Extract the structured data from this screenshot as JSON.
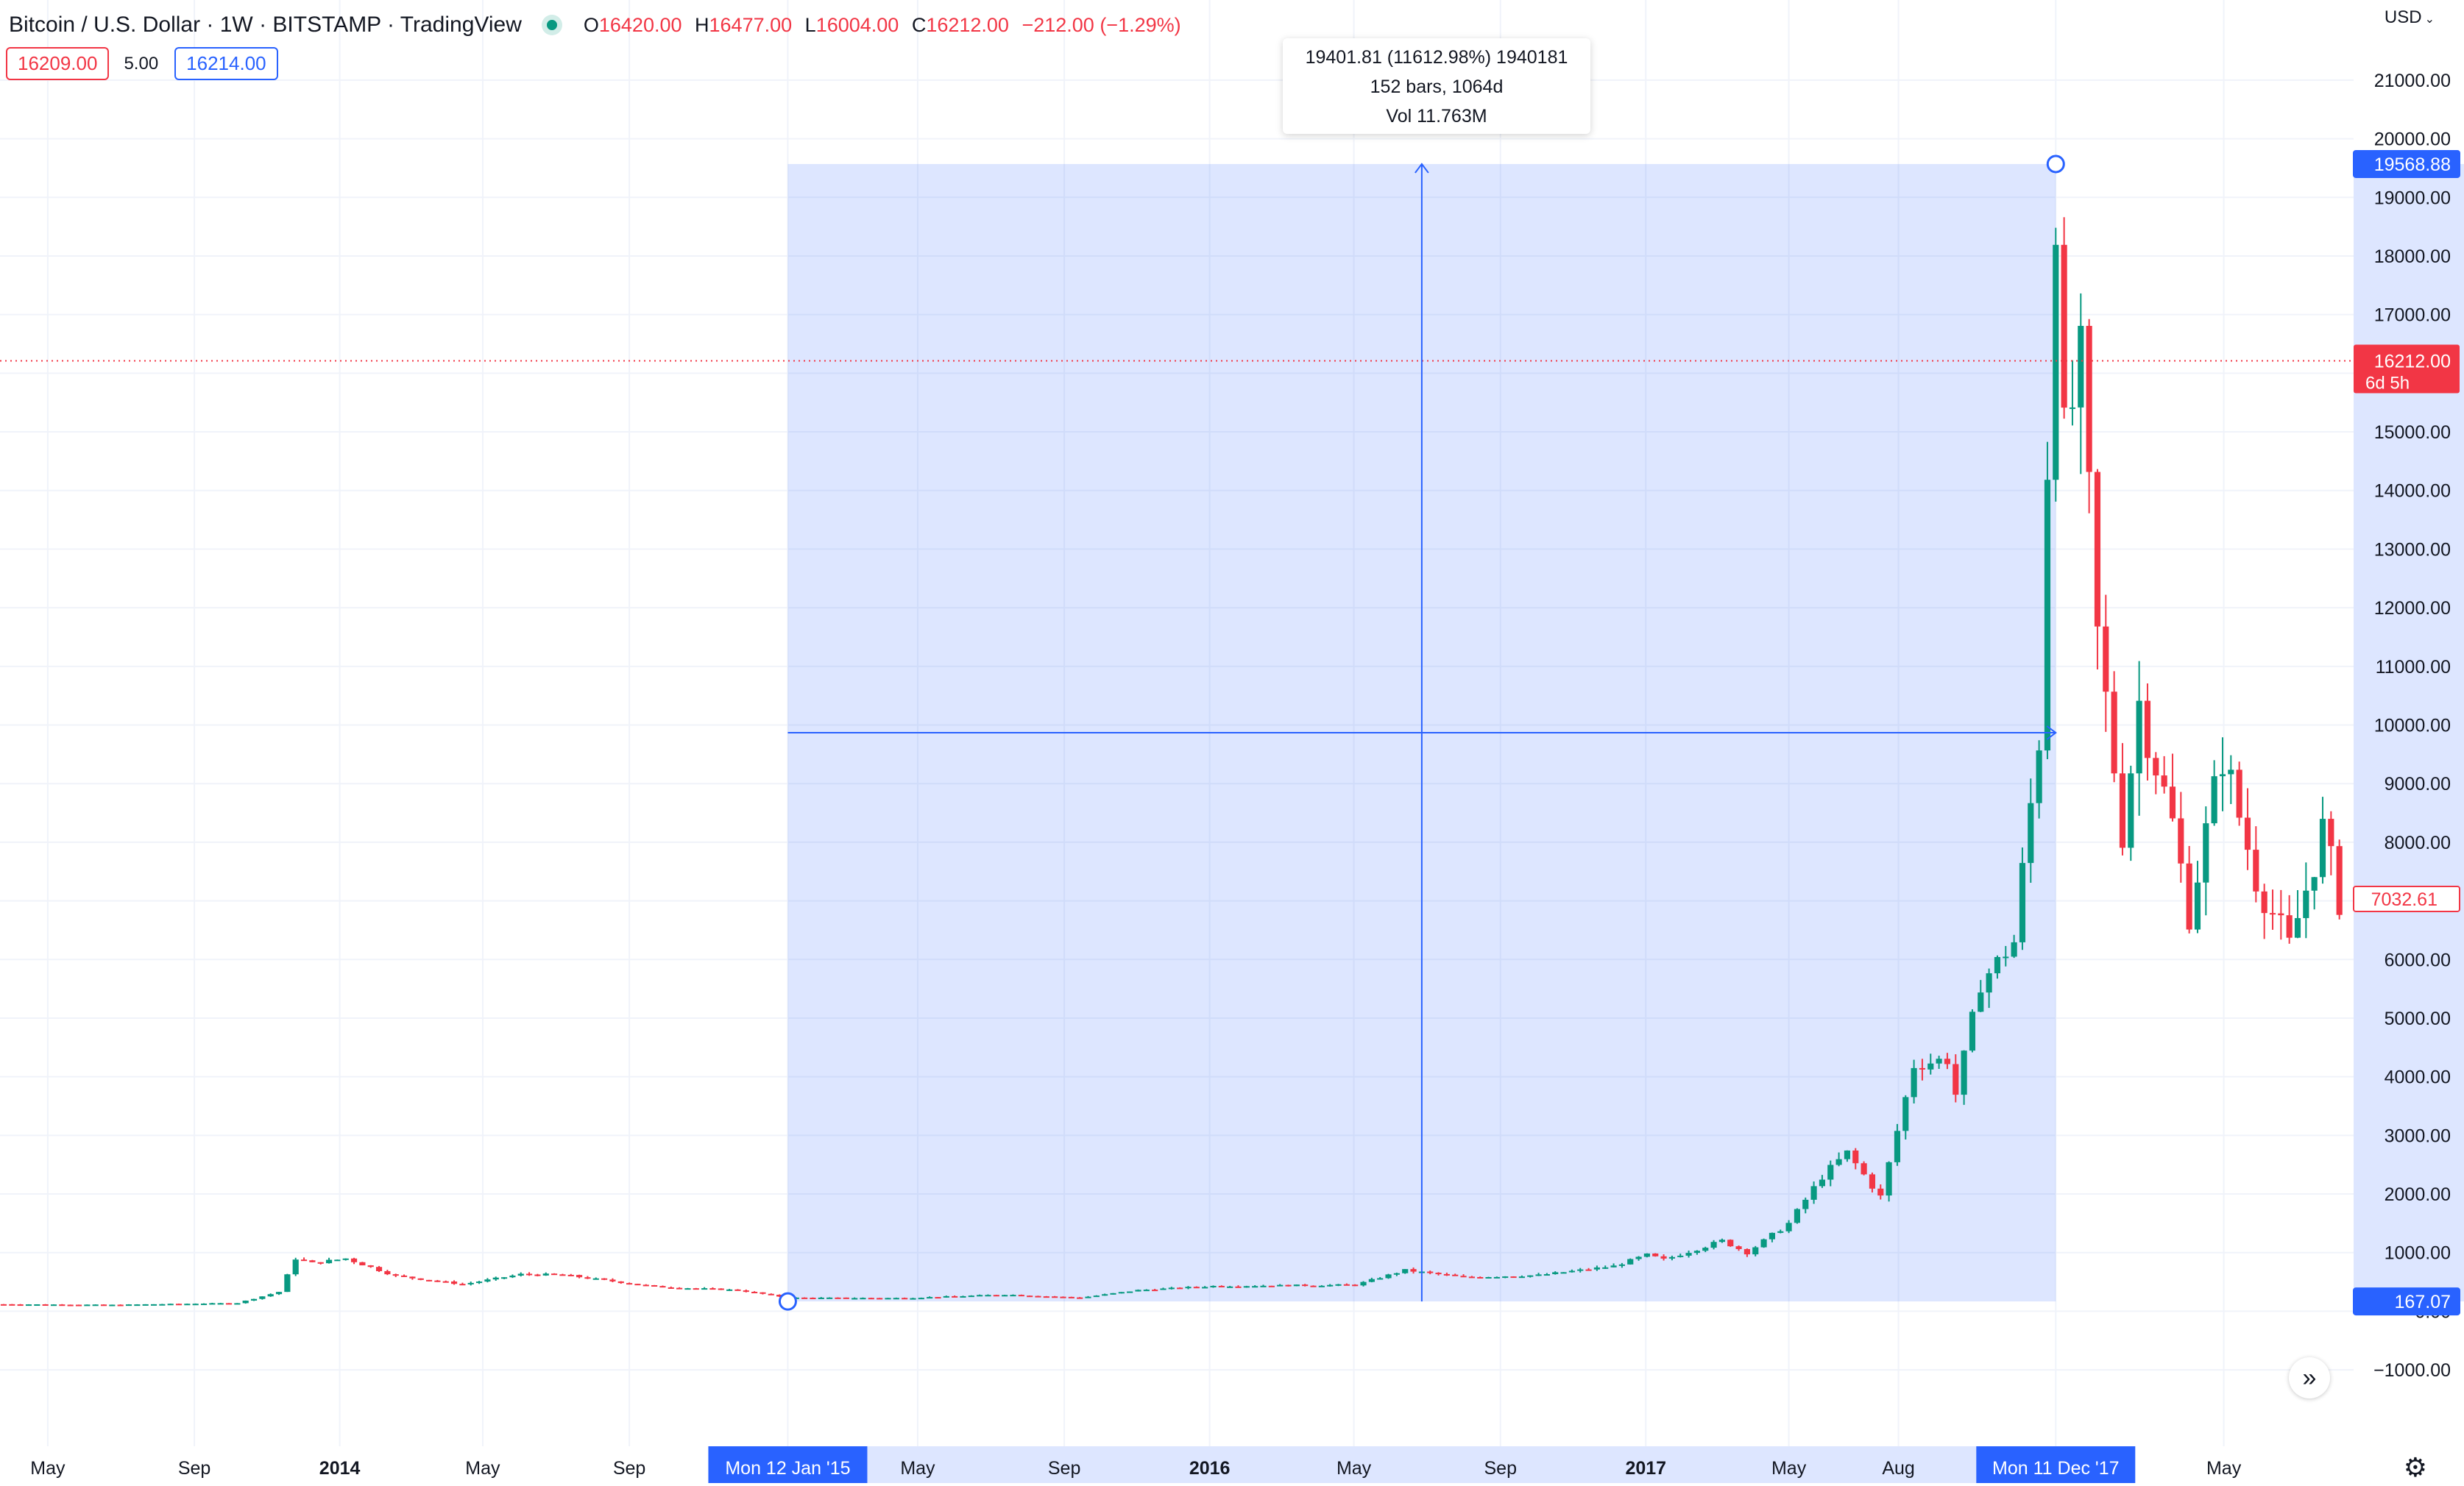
{
  "header": {
    "title": "Bitcoin / U.S. Dollar · 1W · BITSTAMP · TradingView",
    "ohlc": {
      "o_label": "O",
      "o": "16420.00",
      "h_label": "H",
      "h": "16477.00",
      "l_label": "L",
      "l": "16004.00",
      "c_label": "C",
      "c": "16212.00",
      "change": "−212.00 (−1.29%)"
    }
  },
  "quote": {
    "sell": "16209.00",
    "spread": "5.00",
    "buy": "16214.00"
  },
  "currency": "USD",
  "measure": {
    "line1": "19401.81 (11612.98%) 1940181",
    "line2": "152 bars, 1064d",
    "line3": "Vol 11.763M"
  },
  "price_axis": {
    "ticks": [
      "21000.00",
      "20000.00",
      "19000.00",
      "18000.00",
      "17000.00",
      "16000.00",
      "15000.00",
      "14000.00",
      "13000.00",
      "12000.00",
      "11000.00",
      "10000.00",
      "9000.00",
      "8000.00",
      "7000.00",
      "6000.00",
      "5000.00",
      "4000.00",
      "3000.00",
      "2000.00",
      "1000.00",
      "0.00",
      "−1000.00"
    ],
    "measure_top_label": "19568.88",
    "measure_bottom_label": "167.07",
    "last_price_label": "16212.00",
    "countdown_label": "6d 5h",
    "crosshair_label": "7032.61"
  },
  "time_axis": {
    "ticks": [
      "May",
      "Sep",
      "2014",
      "May",
      "Sep",
      "Mon 12 Jan '15",
      "May",
      "Sep",
      "2016",
      "May",
      "Sep",
      "2017",
      "May",
      "Aug",
      "Mon 11 Dec '17",
      "May"
    ],
    "bold": [
      "2014",
      "2016",
      "2017"
    ],
    "highlighted": [
      "Mon 12 Jan '15",
      "Mon 11 Dec '17"
    ]
  },
  "colors": {
    "up": "#089981",
    "down": "#f23645",
    "accent": "#2962ff",
    "measure_fill": "#2962ff",
    "grid": "#f0f3fa"
  },
  "icons": {
    "go_to_realtime": "double-chevron-right-icon",
    "settings": "gear-icon"
  },
  "chart_data": {
    "type": "candlestick",
    "interval": "1W",
    "symbol": "BTCUSD",
    "exchange": "BITSTAMP",
    "ylim": [
      -1350,
      21300
    ],
    "xlim": [
      "2013-03-25",
      "2018-08-13"
    ],
    "grid": true,
    "measure": {
      "from_date": "2015-01-12",
      "to_date": "2017-12-11",
      "from_price": 167.07,
      "to_price": 19568.88
    },
    "anchors": [
      {
        "date": "2013-03-25",
        "price": 120
      },
      {
        "date": "2013-06-24",
        "price": 110
      },
      {
        "date": "2013-10-07",
        "price": 140
      },
      {
        "date": "2013-11-11",
        "price": 330
      },
      {
        "date": "2013-11-25",
        "price": 900
      },
      {
        "date": "2013-12-09",
        "price": 820
      },
      {
        "date": "2014-01-06",
        "price": 900
      },
      {
        "date": "2014-02-17",
        "price": 600
      },
      {
        "date": "2014-04-14",
        "price": 460
      },
      {
        "date": "2014-06-02",
        "price": 630
      },
      {
        "date": "2014-07-07",
        "price": 620
      },
      {
        "date": "2014-09-22",
        "price": 420
      },
      {
        "date": "2014-12-01",
        "price": 360
      },
      {
        "date": "2015-01-12",
        "price": 230
      },
      {
        "date": "2015-04-20",
        "price": 225
      },
      {
        "date": "2015-07-13",
        "price": 285
      },
      {
        "date": "2015-09-14",
        "price": 230
      },
      {
        "date": "2015-11-02",
        "price": 360
      },
      {
        "date": "2016-01-04",
        "price": 430
      },
      {
        "date": "2016-05-02",
        "price": 450
      },
      {
        "date": "2016-06-13",
        "price": 700
      },
      {
        "date": "2016-08-01",
        "price": 580
      },
      {
        "date": "2016-10-03",
        "price": 615
      },
      {
        "date": "2016-12-05",
        "price": 770
      },
      {
        "date": "2017-01-02",
        "price": 960
      },
      {
        "date": "2017-01-16",
        "price": 880
      },
      {
        "date": "2017-03-06",
        "price": 1200
      },
      {
        "date": "2017-03-27",
        "price": 1000
      },
      {
        "date": "2017-05-01",
        "price": 1500
      },
      {
        "date": "2017-05-29",
        "price": 2300
      },
      {
        "date": "2017-06-19",
        "price": 2700
      },
      {
        "date": "2017-07-17",
        "price": 1950
      },
      {
        "date": "2017-08-14",
        "price": 4200
      },
      {
        "date": "2017-09-11",
        "price": 4300
      },
      {
        "date": "2017-09-18",
        "price": 3700
      },
      {
        "date": "2017-10-09",
        "price": 5600
      },
      {
        "date": "2017-11-06",
        "price": 6300
      },
      {
        "date": "2017-11-27",
        "price": 9800
      },
      {
        "date": "2017-12-04",
        "price": 14500
      },
      {
        "date": "2017-12-11",
        "price": 19000
      },
      {
        "date": "2017-12-18",
        "price": 14800
      },
      {
        "date": "2018-01-01",
        "price": 16100
      },
      {
        "date": "2018-01-15",
        "price": 11500
      },
      {
        "date": "2018-02-05",
        "price": 8200
      },
      {
        "date": "2018-02-19",
        "price": 10400
      },
      {
        "date": "2018-03-19",
        "price": 8300
      },
      {
        "date": "2018-04-02",
        "price": 6800
      },
      {
        "date": "2018-04-30",
        "price": 9500
      },
      {
        "date": "2018-05-28",
        "price": 7400
      },
      {
        "date": "2018-06-25",
        "price": 6200
      },
      {
        "date": "2018-07-23",
        "price": 8200
      },
      {
        "date": "2018-08-06",
        "price": 7032
      }
    ]
  }
}
